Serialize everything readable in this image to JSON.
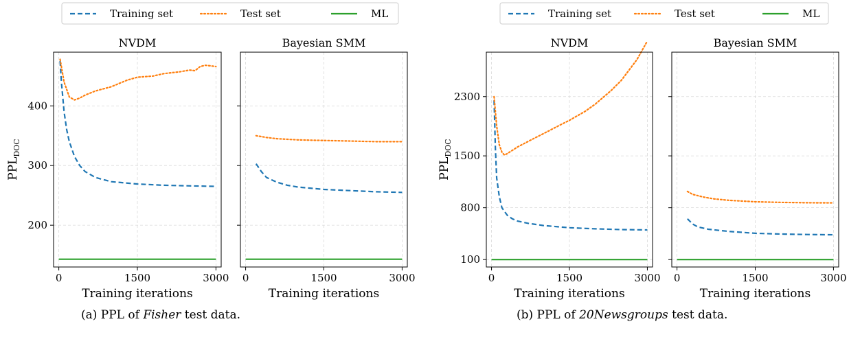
{
  "legend": {
    "training": "Training set",
    "test": "Test set",
    "ml": "ML"
  },
  "colors": {
    "training": "#1f77b4",
    "test": "#ff7f0e",
    "ml": "#2ca02c"
  },
  "captions": [
    {
      "prefix": "(a)  PPL of ",
      "emph": "Fisher",
      "suffix": " test data."
    },
    {
      "prefix": "(b)  PPL of ",
      "emph": "20Newsgroups",
      "suffix": " test data."
    }
  ],
  "chart_data": [
    {
      "type": "line",
      "title": "NVDM",
      "xlabel": "Training iterations",
      "ylabel": "PPL",
      "ylabel_sub": "DOC",
      "xlim": [
        -100,
        3100
      ],
      "ylim": [
        130,
        490
      ],
      "xticks": [
        0,
        1500,
        3000
      ],
      "yticks": [
        200,
        300,
        400
      ],
      "grid": true,
      "series": [
        {
          "name": "Training set",
          "style": "dashed",
          "x": [
            25,
            50,
            100,
            150,
            200,
            300,
            400,
            500,
            700,
            1000,
            1500,
            2000,
            2500,
            3000
          ],
          "y": [
            475,
            440,
            390,
            360,
            340,
            315,
            300,
            290,
            280,
            273,
            269,
            267,
            266,
            265
          ]
        },
        {
          "name": "Test set",
          "style": "dotted",
          "x": [
            25,
            100,
            200,
            300,
            400,
            500,
            700,
            1000,
            1300,
            1500,
            1800,
            2000,
            2300,
            2500,
            2600,
            2700,
            2800,
            3000
          ],
          "y": [
            478,
            440,
            415,
            410,
            413,
            418,
            425,
            432,
            443,
            448,
            450,
            454,
            457,
            460,
            459,
            466,
            468,
            466
          ]
        },
        {
          "name": "ML",
          "style": "solid",
          "x": [
            0,
            3000
          ],
          "y": [
            143,
            143
          ]
        }
      ]
    },
    {
      "type": "line",
      "title": "Bayesian SMM",
      "xlabel": "Training iterations",
      "ylabel": "",
      "xlim": [
        -100,
        3100
      ],
      "ylim": [
        130,
        490
      ],
      "xticks": [
        0,
        1500,
        3000
      ],
      "yticks": [
        200,
        300,
        400
      ],
      "grid": true,
      "series": [
        {
          "name": "Training set",
          "style": "dashed",
          "x": [
            200,
            300,
            400,
            600,
            800,
            1000,
            1500,
            2000,
            2500,
            3000
          ],
          "y": [
            303,
            290,
            280,
            272,
            267,
            264,
            260,
            258,
            256,
            255
          ]
        },
        {
          "name": "Test set",
          "style": "dotted",
          "x": [
            200,
            400,
            600,
            1000,
            1500,
            2000,
            2500,
            3000
          ],
          "y": [
            350,
            347,
            345,
            343,
            342,
            341,
            340,
            340
          ]
        },
        {
          "name": "ML",
          "style": "solid",
          "x": [
            0,
            3000
          ],
          "y": [
            143,
            143
          ]
        }
      ]
    },
    {
      "type": "line",
      "title": "NVDM",
      "xlabel": "Training iterations",
      "ylabel": "PPL",
      "ylabel_sub": "DOC",
      "xlim": [
        -100,
        3100
      ],
      "ylim": [
        0,
        2900
      ],
      "xticks": [
        0,
        1500,
        3000
      ],
      "yticks": [
        100,
        800,
        1500,
        2300
      ],
      "grid": true,
      "series": [
        {
          "name": "Training set",
          "style": "dashed",
          "x": [
            50,
            75,
            100,
            150,
            200,
            300,
            400,
            500,
            700,
            1000,
            1500,
            2000,
            2500,
            3000
          ],
          "y": [
            2250,
            1600,
            1200,
            950,
            800,
            700,
            650,
            620,
            590,
            560,
            530,
            515,
            505,
            500
          ]
        },
        {
          "name": "Test set",
          "style": "dotted",
          "x": [
            50,
            100,
            150,
            200,
            250,
            300,
            500,
            800,
            1000,
            1300,
            1500,
            1800,
            2000,
            2300,
            2500,
            2800,
            3000
          ],
          "y": [
            2300,
            1900,
            1650,
            1550,
            1510,
            1530,
            1620,
            1730,
            1800,
            1910,
            1980,
            2100,
            2200,
            2380,
            2520,
            2800,
            3050
          ]
        },
        {
          "name": "ML",
          "style": "solid",
          "x": [
            0,
            3000
          ],
          "y": [
            100,
            100
          ]
        }
      ]
    },
    {
      "type": "line",
      "title": "Bayesian SMM",
      "xlabel": "Training iterations",
      "ylabel": "",
      "xlim": [
        -100,
        3100
      ],
      "ylim": [
        0,
        2900
      ],
      "xticks": [
        0,
        1500,
        3000
      ],
      "yticks": [
        100,
        800,
        1500,
        2300
      ],
      "grid": true,
      "series": [
        {
          "name": "Training set",
          "style": "dashed",
          "x": [
            200,
            300,
            400,
            600,
            1000,
            1500,
            2000,
            2500,
            3000
          ],
          "y": [
            650,
            580,
            540,
            510,
            480,
            455,
            445,
            438,
            435
          ]
        },
        {
          "name": "Test set",
          "style": "dotted",
          "x": [
            200,
            300,
            500,
            700,
            1000,
            1500,
            2000,
            2500,
            3000
          ],
          "y": [
            1020,
            980,
            945,
            920,
            900,
            880,
            872,
            867,
            865
          ]
        },
        {
          "name": "ML",
          "style": "solid",
          "x": [
            0,
            3000
          ],
          "y": [
            100,
            100
          ]
        }
      ]
    }
  ]
}
